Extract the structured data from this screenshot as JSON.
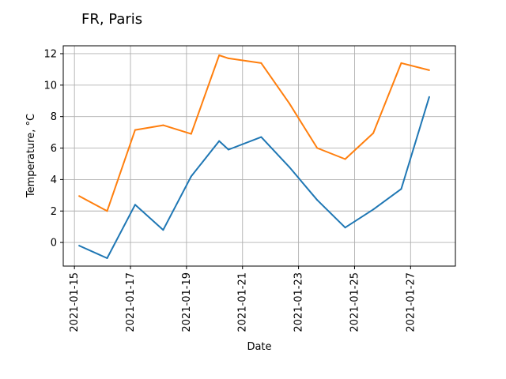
{
  "chart_data": {
    "type": "line",
    "title": "FR, Paris",
    "xlabel": "Date",
    "ylabel": "Temperature, °C",
    "x": [
      "2021-01-15T04:00",
      "2021-01-16T04:00",
      "2021-01-17T04:00",
      "2021-01-18T04:00",
      "2021-01-19T04:00",
      "2021-01-20T04:00",
      "2021-01-20T12:00",
      "2021-01-21T16:00",
      "2021-01-22T16:00",
      "2021-01-23T16:00",
      "2021-01-24T16:00",
      "2021-01-25T16:00",
      "2021-01-26T16:00",
      "2021-01-27T16:00"
    ],
    "series": [
      {
        "color": "#1f77b4",
        "values": [
          -0.2,
          -1.0,
          2.4,
          0.8,
          4.2,
          6.45,
          5.9,
          6.7,
          4.8,
          2.7,
          0.95,
          2.1,
          3.4,
          9.25
        ]
      },
      {
        "color": "#ff7f0e",
        "values": [
          2.95,
          2.0,
          7.15,
          7.45,
          6.9,
          11.9,
          11.7,
          11.4,
          8.85,
          6.0,
          5.3,
          6.95,
          11.4,
          10.95
        ]
      }
    ],
    "xlim": [
      "2021-01-14T14:24",
      "2021-01-28T14:24"
    ],
    "ylim": [
      -1.5,
      12.5
    ],
    "xticks": [
      "2021-01-15",
      "2021-01-17",
      "2021-01-19",
      "2021-01-21",
      "2021-01-23",
      "2021-01-25",
      "2021-01-27"
    ],
    "yticks": [
      0,
      2,
      4,
      6,
      8,
      10,
      12
    ],
    "grid": true
  }
}
